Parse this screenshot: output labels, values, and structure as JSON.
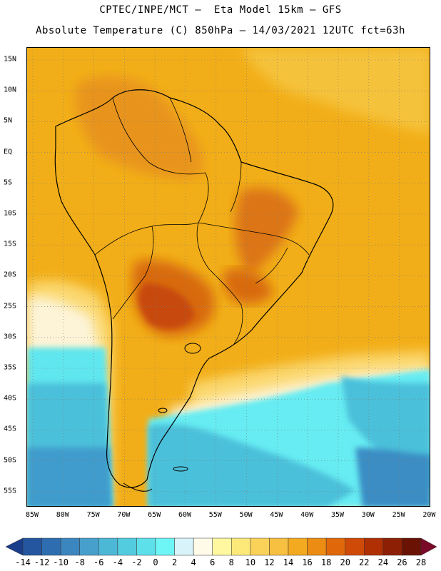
{
  "title": {
    "line1": "CPTEC/INPE/MCT –  Eta Model 15km – GFS",
    "line2": "Absolute Temperature (C) 850hPa – 14/03/2021 12UTC fct=63h"
  },
  "lat_labels": [
    "15N",
    "10N",
    "5N",
    "EQ",
    "5S",
    "10S",
    "15S",
    "20S",
    "25S",
    "30S",
    "35S",
    "40S",
    "45S",
    "50S",
    "55S"
  ],
  "lon_labels": [
    "85W",
    "80W",
    "75W",
    "70W",
    "65W",
    "60W",
    "55W",
    "50W",
    "45W",
    "40W",
    "35W",
    "30W",
    "25W",
    "20W"
  ],
  "colorbar": {
    "labels": [
      "-14",
      "-12",
      "-10",
      "-8",
      "-6",
      "-4",
      "-2",
      "0",
      "2",
      "4",
      "6",
      "8",
      "10",
      "12",
      "14",
      "16",
      "18",
      "20",
      "22",
      "24",
      "26",
      "28"
    ],
    "colors": [
      "#1a3e8c",
      "#2456a0",
      "#2e6eb0",
      "#3c86bf",
      "#47a0cc",
      "#4db8d6",
      "#53cce0",
      "#5ee0ea",
      "#6ef5f5",
      "#d8f4fa",
      "#fffbe8",
      "#fff8a0",
      "#fde97a",
      "#fad25a",
      "#f7c040",
      "#f4aa20",
      "#ec8c12",
      "#e0680a",
      "#cf4a06",
      "#b03004",
      "#8c1f04",
      "#6a1204",
      "#7a0a28"
    ]
  },
  "map": {
    "ocean_warm": "#f2ae18",
    "land_warm": "#eea21a",
    "hot_core": "#c84a0c",
    "very_hot": "#d86a10",
    "coast_line": "#000000"
  }
}
